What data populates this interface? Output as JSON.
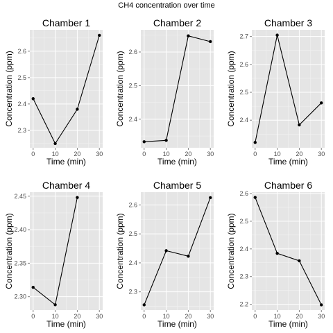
{
  "figure": {
    "title": "CH4 concentration over time"
  },
  "colors": {
    "panel_background": "#e5e5e5",
    "grid": "#ffffff",
    "line": "#000000",
    "tick_text": "#4d4d4d"
  },
  "chart_data": [
    {
      "type": "line",
      "title": "Chamber  1",
      "xlabel": "Time (min)",
      "ylabel": "Concentration (ppm)",
      "x": [
        0,
        10,
        20,
        30
      ],
      "y": [
        2.42,
        2.25,
        2.38,
        2.66
      ],
      "xlim": [
        -1.5,
        31.5
      ],
      "ylim": [
        2.234,
        2.681
      ],
      "xticks": [
        0,
        10,
        20,
        30
      ],
      "yticks": [
        2.3,
        2.4,
        2.5,
        2.6
      ],
      "ytick_labels": [
        "2.3",
        "2.4",
        "2.5",
        "2.6"
      ],
      "grid": true
    },
    {
      "type": "line",
      "title": "Chamber  2",
      "xlabel": "Time (min)",
      "ylabel": "Concentration (ppm)",
      "x": [
        0,
        10,
        20,
        30
      ],
      "y": [
        2.333,
        2.337,
        2.648,
        2.631
      ],
      "xlim": [
        -1.5,
        31.5
      ],
      "ylim": [
        2.315,
        2.666
      ],
      "xticks": [
        0,
        10,
        20,
        30
      ],
      "yticks": [
        2.4,
        2.5,
        2.6
      ],
      "ytick_labels": [
        "2.4",
        "2.5",
        "2.6"
      ],
      "grid": true
    },
    {
      "type": "line",
      "title": "Chamber  3",
      "xlabel": "Time (min)",
      "ylabel": "Concentration (ppm)",
      "x": [
        0,
        10,
        20,
        30
      ],
      "y": [
        2.32,
        2.705,
        2.383,
        2.462
      ],
      "xlim": [
        -1.5,
        31.5
      ],
      "ylim": [
        2.301,
        2.724
      ],
      "xticks": [
        0,
        10,
        20,
        30
      ],
      "yticks": [
        2.4,
        2.5,
        2.6,
        2.7
      ],
      "ytick_labels": [
        "2.4",
        "2.5",
        "2.6",
        "2.7"
      ],
      "grid": true
    },
    {
      "type": "line",
      "title": "Chamber  4",
      "xlabel": "Time (min)",
      "ylabel": "Concentration (ppm)",
      "x": [
        0,
        10,
        20
      ],
      "y": [
        2.314,
        2.288,
        2.448
      ],
      "xlim": [
        -1.5,
        31.5
      ],
      "ylim": [
        2.28,
        2.456
      ],
      "xticks": [
        0,
        10,
        20,
        30
      ],
      "yticks": [
        2.3,
        2.35,
        2.4,
        2.45
      ],
      "ytick_labels": [
        "2.30",
        "2.35",
        "2.40",
        "2.45"
      ],
      "grid": true
    },
    {
      "type": "line",
      "title": "Chamber  5",
      "xlabel": "Time (min)",
      "ylabel": "Concentration (ppm)",
      "x": [
        0,
        10,
        20,
        30
      ],
      "y": [
        2.255,
        2.442,
        2.423,
        2.625
      ],
      "xlim": [
        -1.5,
        31.5
      ],
      "ylim": [
        2.237,
        2.644
      ],
      "xticks": [
        0,
        10,
        20,
        30
      ],
      "yticks": [
        2.3,
        2.4,
        2.5,
        2.6
      ],
      "ytick_labels": [
        "2.3",
        "2.4",
        "2.5",
        "2.6"
      ],
      "grid": true
    },
    {
      "type": "line",
      "title": "Chamber  6",
      "xlabel": "Time (min)",
      "ylabel": "Concentration (ppm)",
      "x": [
        0,
        10,
        20,
        30
      ],
      "y": [
        2.586,
        2.384,
        2.357,
        2.198
      ],
      "xlim": [
        -1.5,
        31.5
      ],
      "ylim": [
        2.179,
        2.605
      ],
      "xticks": [
        0,
        10,
        20,
        30
      ],
      "yticks": [
        2.2,
        2.3,
        2.4,
        2.5,
        2.6
      ],
      "ytick_labels": [
        "2.2",
        "2.3",
        "2.4",
        "2.5",
        "2.6"
      ],
      "grid": true
    }
  ]
}
